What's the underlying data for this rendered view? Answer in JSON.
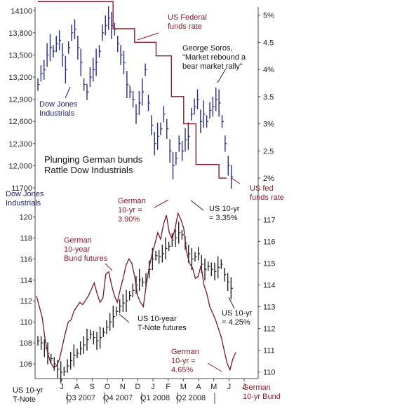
{
  "colors": {
    "dow_bars": "#2a2a8a",
    "fed_rate": "#8a1c2b",
    "tnote_bars": "#222222",
    "bund_yield": "#7a1426",
    "axis": "#444444"
  },
  "chart_data": [
    {
      "type": "line",
      "panel": "top",
      "left_axis": {
        "title": "Dow Jones Industrials",
        "ticks": [
          "14100",
          "13,800",
          "13,500",
          "13,200",
          "12,900",
          "12,600",
          "12,300",
          "12,000",
          "11700"
        ],
        "values": [
          14100,
          13800,
          13500,
          13200,
          12900,
          12600,
          12300,
          12000,
          11700
        ],
        "ylim": [
          11700,
          14150
        ]
      },
      "right_axis": {
        "ticks": [
          "5%",
          "4.5",
          "4%",
          "3.5",
          "3%",
          "2.5",
          "2%"
        ],
        "values": [
          5,
          4.5,
          4,
          3.5,
          3,
          2.5,
          2
        ],
        "ylim": [
          1.82,
          5.15
        ]
      },
      "series": [
        {
          "name": "Dow Jones Industrials",
          "style": "hlc-bars",
          "axis": "left",
          "values": [
            13100,
            13250,
            13300,
            13500,
            13600,
            13550,
            13650,
            13700,
            13500,
            13300,
            13600,
            13800,
            13850,
            13600,
            13400,
            13100,
            13000,
            13200,
            13300,
            13400,
            13550,
            13800,
            13900,
            14000,
            13900,
            13850,
            13650,
            13500,
            13400,
            13100,
            13000,
            12900,
            12700,
            12850,
            13000,
            13300,
            12850,
            12550,
            12300,
            12400,
            12500,
            12700,
            12500,
            12200,
            12000,
            12100,
            12300,
            12200,
            12350,
            12400,
            12700,
            12800,
            12900,
            12600,
            12700,
            12600,
            12750,
            12800,
            12900,
            12850,
            12600,
            12300,
            12000,
            11850
          ]
        },
        {
          "name": "US Federal funds rate",
          "style": "step",
          "axis": "right",
          "x": [
            0,
            24.5,
            31.5,
            38.5,
            43.5,
            47.5,
            51.5,
            59,
            61.5
          ],
          "values": [
            5.25,
            4.75,
            4.5,
            4.25,
            3.5,
            3.0,
            2.25,
            2.0,
            2.0
          ]
        }
      ],
      "annotations": [
        "US Federal funds rate",
        "George Soros, \"Market rebound a bear market rally\"",
        "Dow Jones Industrials",
        "Plunging German bunds Rattle Dow Industrials",
        "US fed funds rate"
      ]
    },
    {
      "type": "line",
      "panel": "bottom",
      "left_axis": {
        "title": "US 10-yr T-Note",
        "ticks": [
          "120",
          "118",
          "116",
          "114",
          "112",
          "110",
          "108",
          "106"
        ],
        "values": [
          120,
          118,
          116,
          114,
          112,
          110,
          108,
          106
        ],
        "ylim": [
          104.6,
          121.3
        ]
      },
      "right_axis": {
        "title": "German 10-yr Bund",
        "ticks": [
          "117",
          "116",
          "115",
          "114",
          "113",
          "112",
          "111",
          "110"
        ],
        "values": [
          117,
          116,
          115,
          114,
          113,
          112,
          111,
          110
        ],
        "ylim": [
          109.7,
          117.75
        ]
      },
      "x_axis": {
        "months": [
          "J",
          "A",
          "S",
          "O",
          "N",
          "D",
          "J",
          "F",
          "M",
          "A",
          "M",
          "J",
          "J"
        ],
        "quarters": [
          "Q3 2007",
          "Q4 2007",
          "Q1 2008",
          "Q2 2008"
        ]
      },
      "series": [
        {
          "name": "US 10-year T-Note futures",
          "style": "hlc-bars",
          "axis": "left",
          "values": [
            108.2,
            108.0,
            107.5,
            107.0,
            106.5,
            106.0,
            105.5,
            105.2,
            105.3,
            105.8,
            106.3,
            106.8,
            107.0,
            107.5,
            107.8,
            108.3,
            108.8,
            108.5,
            108.2,
            108.5,
            109.0,
            109.5,
            110.0,
            110.5,
            111.0,
            111.5,
            111.8,
            112.0,
            112.5,
            113.0,
            113.5,
            114.0,
            113.8,
            114.0,
            115.0,
            116.0,
            116.3,
            116.2,
            116.5,
            117.0,
            117.2,
            117.8,
            118.0,
            118.5,
            118.3,
            117.5,
            116.5,
            116.0,
            116.2,
            116.5,
            115.5,
            115.0,
            115.3,
            115.0,
            114.8,
            115.2,
            115.5,
            114.5,
            113.8,
            113.2
          ]
        },
        {
          "name": "German 10-year Bund futures",
          "style": "line",
          "axis": "right",
          "values": [
            113.5,
            113.0,
            112.5,
            111.5,
            110.8,
            110.4,
            110.2,
            110.3,
            110.6,
            111.2,
            111.8,
            112.3,
            112.4,
            112.8,
            113.0,
            113.2,
            113.1,
            113.3,
            113.5,
            113.8,
            114.1,
            113.6,
            113.2,
            113.4,
            114.5,
            114.6,
            114.0,
            113.5,
            113.2,
            113.8,
            114.3,
            114.9,
            115.2,
            115.0,
            114.4,
            113.5,
            113.2,
            113.0,
            114.0,
            114.8,
            115.4,
            115.9,
            116.4,
            116.1,
            116.8,
            117.2,
            116.4,
            116.1,
            116.6,
            117.3,
            117.0,
            116.6,
            115.5,
            115.0,
            114.8,
            114.3,
            114.4,
            114.9,
            114.0,
            113.6,
            113.0,
            112.7,
            112.4,
            112.0,
            111.6,
            111.0,
            110.4,
            110.1,
            110.6,
            110.9
          ]
        }
      ],
      "annotations": [
        "German 10-year Bund futures",
        "German 10-yr = 3.90%",
        "US 10-yr = 3.35%",
        "US 10-year T-Note futures",
        "US 10-yr = 4.25%",
        "German 10-yr = 4.65%"
      ]
    }
  ],
  "labels": {
    "top_left_axis_title_1": "Dow Jones",
    "top_left_axis_title_2": "Industrials",
    "fed_title_1": "US Federal",
    "fed_title_2": "funds rate",
    "soros_1": "George Soros,",
    "soros_2": "\"Market rebound a",
    "soros_3": "bear market rally\"",
    "dow_inner_1": "Dow Jones",
    "dow_inner_2": "Industrials",
    "headline_1": "Plunging German bunds",
    "headline_2": "Rattle Dow Industrials",
    "fed_end_1": "US fed",
    "fed_end_2": "funds rate",
    "bund_futures_1": "German",
    "bund_futures_2": "10-year",
    "bund_futures_3": "Bund futures",
    "german_peak_1": "German",
    "german_peak_2": "10-yr =",
    "german_peak_3": "3.90%",
    "us_peak_1": "US 10-yr",
    "us_peak_2": "= 3.35%",
    "tnote_1": "US 10-year",
    "tnote_2": "T-Note futures",
    "us_end_1": "US 10-yr",
    "us_end_2": "= 4.25%",
    "german_end_1": "German",
    "german_end_2": "10-yr =",
    "german_end_3": "4.65%",
    "bottom_left_title_1": "US 10-yr",
    "bottom_left_title_2": "T-Note",
    "bottom_right_title_1": "German",
    "bottom_right_title_2": "10-yr Bund"
  }
}
